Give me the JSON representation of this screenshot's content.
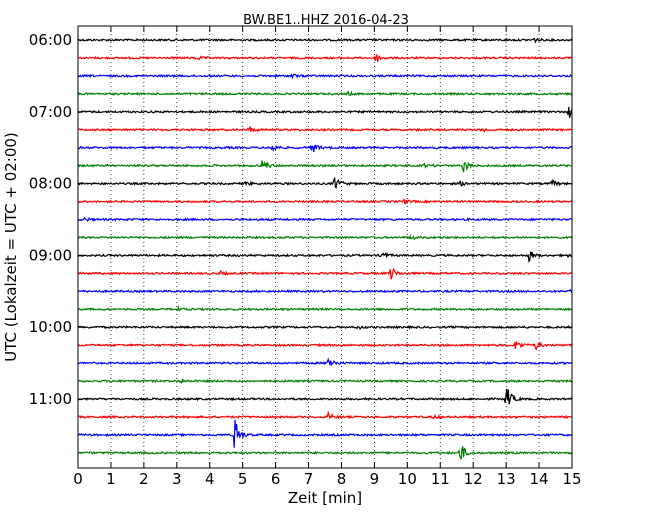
{
  "chart_data": {
    "type": "line",
    "title": "BW.BE1..HHZ 2016-04-23",
    "xlabel": "Zeit  [min]",
    "ylabel": "UTC (Lokalzeit = UTC + 02:00)",
    "xlim": [
      0,
      15
    ],
    "x_ticks": [
      "0",
      "1",
      "2",
      "3",
      "4",
      "5",
      "6",
      "7",
      "8",
      "9",
      "10",
      "11",
      "12",
      "13",
      "14",
      "15"
    ],
    "y_tick_labels": [
      "06:00",
      "07:00",
      "08:00",
      "09:00",
      "10:00",
      "11:00"
    ],
    "grid": "vertical dotted",
    "colors": [
      "#000000",
      "#ff0000",
      "#0000ff",
      "#008000"
    ],
    "trace_start_utc": "06:00",
    "trace_interval_min": 15,
    "traces": [
      {
        "start": "06:00",
        "color": "#000000",
        "events": [
          {
            "t": 13.8,
            "amp": 3
          }
        ]
      },
      {
        "start": "06:15",
        "color": "#ff0000",
        "events": [
          {
            "t": 9.05,
            "amp": 5
          },
          {
            "t": 3.6,
            "amp": 2
          }
        ]
      },
      {
        "start": "06:30",
        "color": "#0000ff",
        "events": [
          {
            "t": 6.5,
            "amp": 2
          }
        ]
      },
      {
        "start": "06:45",
        "color": "#008000",
        "events": [
          {
            "t": 8.2,
            "amp": 1.5
          }
        ]
      },
      {
        "start": "07:00",
        "color": "#000000",
        "events": [
          {
            "t": 14.9,
            "amp": 7
          }
        ]
      },
      {
        "start": "07:15",
        "color": "#ff0000",
        "events": [
          {
            "t": 5.2,
            "amp": 3
          },
          {
            "t": 12.3,
            "amp": 2
          }
        ]
      },
      {
        "start": "07:30",
        "color": "#0000ff",
        "events": [
          {
            "t": 5.9,
            "amp": 4
          },
          {
            "t": 7.1,
            "amp": 6
          }
        ]
      },
      {
        "start": "07:45",
        "color": "#008000",
        "events": [
          {
            "t": 5.6,
            "amp": 7
          },
          {
            "t": 11.7,
            "amp": 7
          },
          {
            "t": 10.5,
            "amp": 1.5
          }
        ]
      },
      {
        "start": "08:00",
        "color": "#000000",
        "events": [
          {
            "t": 7.8,
            "amp": 8
          },
          {
            "t": 5.1,
            "amp": 2
          },
          {
            "t": 11.6,
            "amp": 2
          },
          {
            "t": 14.4,
            "amp": 3
          }
        ]
      },
      {
        "start": "08:15",
        "color": "#ff0000",
        "events": [
          {
            "t": 9.9,
            "amp": 2
          }
        ]
      },
      {
        "start": "08:30",
        "color": "#0000ff",
        "events": [
          {
            "t": 0.2,
            "amp": 2
          }
        ]
      },
      {
        "start": "08:45",
        "color": "#008000",
        "events": [
          {
            "t": 10.1,
            "amp": 2
          }
        ]
      },
      {
        "start": "09:00",
        "color": "#000000",
        "events": [
          {
            "t": 9.2,
            "amp": 4
          },
          {
            "t": 13.7,
            "amp": 6
          },
          {
            "t": 14.8,
            "amp": 2
          }
        ]
      },
      {
        "start": "09:15",
        "color": "#ff0000",
        "events": [
          {
            "t": 9.5,
            "amp": 7
          },
          {
            "t": 4.3,
            "amp": 2
          }
        ]
      },
      {
        "start": "09:30",
        "color": "#0000ff",
        "events": [
          {
            "t": 14.9,
            "amp": 2
          }
        ]
      },
      {
        "start": "09:45",
        "color": "#008000",
        "events": [
          {
            "t": 3.0,
            "amp": 1.5
          }
        ]
      },
      {
        "start": "10:00",
        "color": "#000000",
        "events": [
          {
            "t": 8.5,
            "amp": 1.5
          }
        ]
      },
      {
        "start": "10:15",
        "color": "#ff0000",
        "events": [
          {
            "t": 13.3,
            "amp": 6
          },
          {
            "t": 13.9,
            "amp": 4
          }
        ]
      },
      {
        "start": "10:30",
        "color": "#0000ff",
        "events": [
          {
            "t": 7.6,
            "amp": 8
          }
        ]
      },
      {
        "start": "10:45",
        "color": "#008000",
        "events": [
          {
            "t": 3.1,
            "amp": 2
          }
        ]
      },
      {
        "start": "11:00",
        "color": "#000000",
        "events": [
          {
            "t": 13.0,
            "amp": 15
          }
        ]
      },
      {
        "start": "11:15",
        "color": "#ff0000",
        "events": [
          {
            "t": 7.6,
            "amp": 4
          },
          {
            "t": 10.8,
            "amp": 1.5
          }
        ]
      },
      {
        "start": "11:30",
        "color": "#0000ff",
        "events": [
          {
            "t": 4.75,
            "amp": 20
          }
        ]
      },
      {
        "start": "11:45",
        "color": "#008000",
        "events": [
          {
            "t": 11.6,
            "amp": 12
          }
        ]
      }
    ]
  }
}
